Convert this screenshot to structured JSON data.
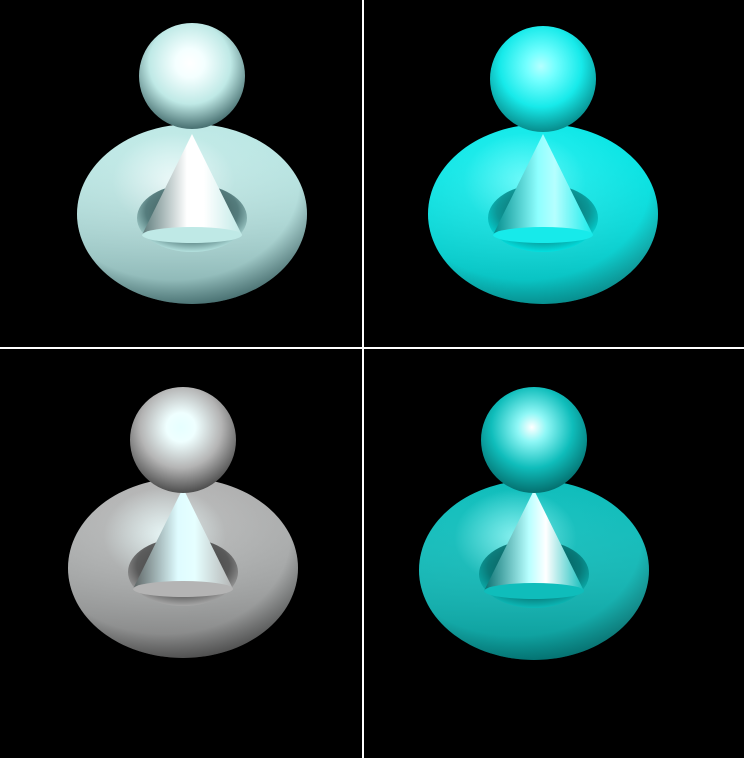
{
  "viewports": [
    {
      "id": "top-left",
      "title": "",
      "material": {
        "base": "#bfe9e6",
        "light": "#f4ffff",
        "mid": "#b7e5e2",
        "dark": "#476f70",
        "shadow": "#1d3132",
        "specular": "#ffffff",
        "cone_light": "#ffffff",
        "cone_dark": "#5d7b7b"
      }
    },
    {
      "id": "top-right",
      "title": "",
      "material": {
        "base": "#17eaea",
        "light": "#74ffff",
        "mid": "#00e2e2",
        "dark": "#078c8c",
        "shadow": "#033737",
        "specular": "#b5ffff",
        "cone_light": "#8effff",
        "cone_dark": "#008b8b"
      }
    },
    {
      "id": "bottom-left",
      "title": "",
      "material": {
        "base": "#b4b4b4",
        "light": "#efffff",
        "mid": "#a9a9a9",
        "dark": "#4d4d4d",
        "shadow": "#262626",
        "specular": "#e6ffff",
        "cone_light": "#dffcff",
        "cone_dark": "#5c6363"
      }
    },
    {
      "id": "bottom-right",
      "title": "",
      "material": {
        "base": "#0fbdbb",
        "light": "#8ff7f6",
        "mid": "#0abab8",
        "dark": "#04706f",
        "shadow": "#012f2f",
        "specular": "#ffffff",
        "cone_light": "#b8ffff",
        "cone_dark": "#066f6f"
      }
    }
  ]
}
